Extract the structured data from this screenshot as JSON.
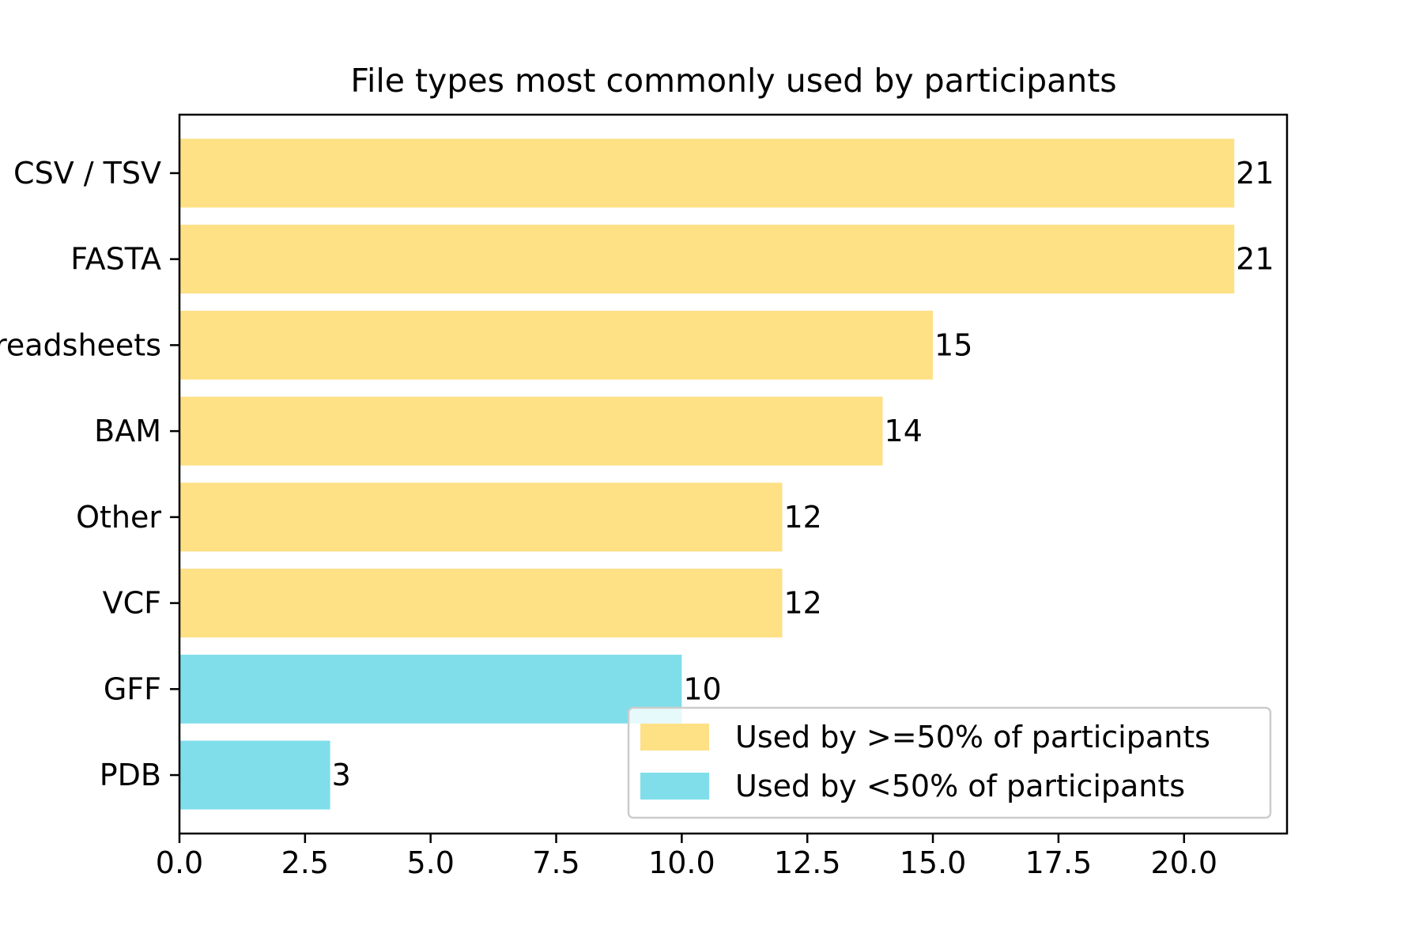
{
  "chart_data": {
    "type": "bar",
    "orientation": "horizontal",
    "title": "File types most commonly used by participants",
    "xlabel": "",
    "ylabel": "",
    "categories": [
      "CSV / TSV",
      "FASTA",
      "Spreadsheets",
      "BAM",
      "Other",
      "VCF",
      "GFF",
      "PDB"
    ],
    "values": [
      21,
      21,
      15,
      14,
      12,
      12,
      10,
      3
    ],
    "groups": [
      0,
      0,
      0,
      0,
      0,
      0,
      1,
      1
    ],
    "xlim": [
      0,
      22.05
    ],
    "xticks": [
      0,
      2.5,
      5,
      7.5,
      10,
      12.5,
      15,
      17.5,
      20
    ],
    "xtick_labels": [
      "0.0",
      "2.5",
      "5.0",
      "7.5",
      "10.0",
      "12.5",
      "15.0",
      "17.5",
      "20.0"
    ],
    "legend": {
      "placement": "lower-right",
      "entries": [
        {
          "label": "Used by >=50% of participants",
          "color": "#fee085"
        },
        {
          "label": "Used by <50% of participants",
          "color": "#80deea"
        }
      ]
    },
    "grid": false
  }
}
